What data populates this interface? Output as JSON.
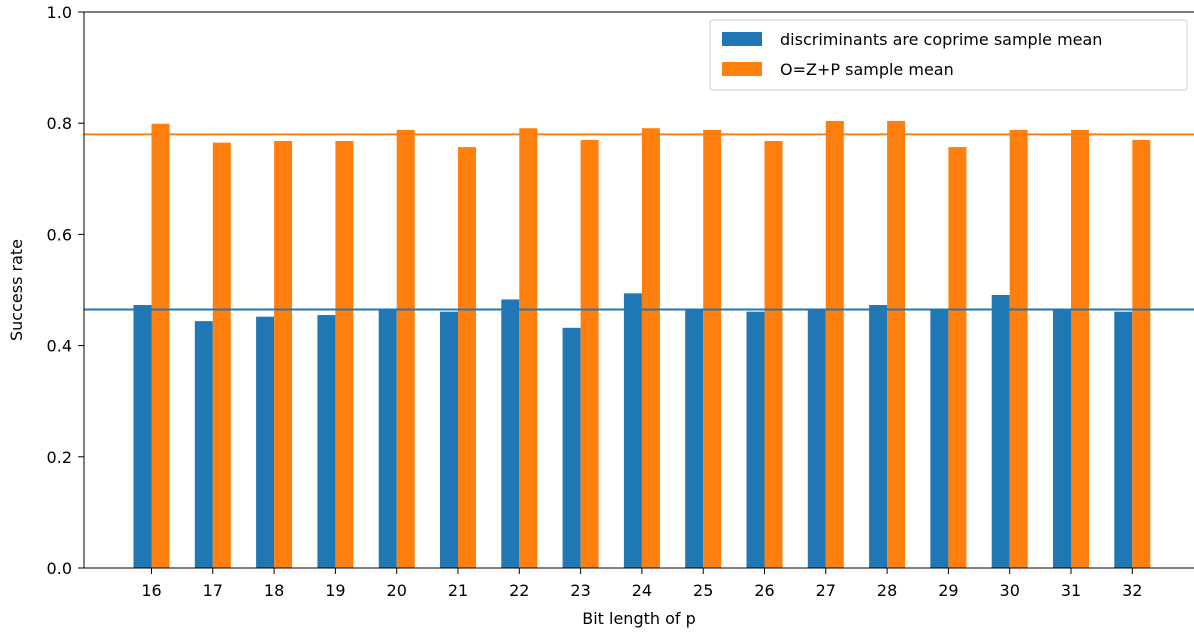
{
  "chart_data": {
    "type": "bar",
    "title": "",
    "xlabel": "Bit length of p",
    "ylabel": "Success rate",
    "ylim": [
      0.0,
      1.0
    ],
    "yticks": [
      "0.0",
      "0.2",
      "0.4",
      "0.6",
      "0.8",
      "1.0"
    ],
    "categories": [
      "16",
      "17",
      "18",
      "19",
      "20",
      "21",
      "22",
      "23",
      "24",
      "25",
      "26",
      "27",
      "28",
      "29",
      "30",
      "31",
      "32"
    ],
    "series": [
      {
        "name": "discriminants are coprime sample mean",
        "color": "#1f77b4",
        "values": [
          0.473,
          0.444,
          0.452,
          0.455,
          0.466,
          0.461,
          0.483,
          0.432,
          0.494,
          0.466,
          0.461,
          0.466,
          0.473,
          0.466,
          0.491,
          0.466,
          0.461
        ]
      },
      {
        "name": "O=Z+P sample mean",
        "color": "#ff7f0e",
        "values": [
          0.799,
          0.765,
          0.768,
          0.768,
          0.788,
          0.757,
          0.791,
          0.77,
          0.791,
          0.788,
          0.768,
          0.804,
          0.804,
          0.757,
          0.788,
          0.788,
          0.77
        ]
      }
    ],
    "hlines": [
      {
        "series": "discriminants are coprime sample mean",
        "value": 0.465,
        "color": "#1f77b4"
      },
      {
        "series": "O=Z+P sample mean",
        "value": 0.78,
        "color": "#ff7f0e"
      }
    ],
    "legend": "top-right",
    "grid": false
  }
}
